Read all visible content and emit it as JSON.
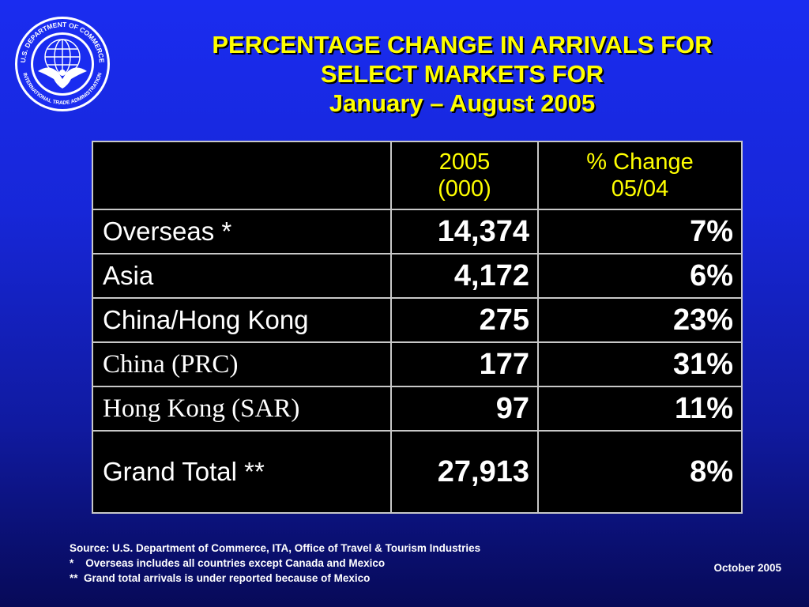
{
  "seal": {
    "ring_text_top": "U.S. DEPARTMENT OF COMMERCE",
    "ring_text_bottom": "INTERNATIONAL TRADE ADMINISTRATION",
    "icon": "eagle-globe-seal"
  },
  "title": {
    "line1": "PERCENTAGE CHANGE IN ARRIVALS FOR",
    "line2": "SELECT MARKETS FOR",
    "line3": "January – August 2005"
  },
  "table": {
    "header": {
      "blank": "",
      "col2_line1": "2005",
      "col2_line2": "(000)",
      "col3_line1": "% Change",
      "col3_line2": "05/04"
    },
    "rows": [
      {
        "label": "Overseas *",
        "arrivals": "14,374",
        "change": "7%"
      },
      {
        "label": "Asia",
        "arrivals": "4,172",
        "change": "6%"
      },
      {
        "label": "China/Hong Kong",
        "arrivals": "275",
        "change": "23%"
      },
      {
        "label": "China (PRC)",
        "arrivals": "177",
        "change": "31%"
      },
      {
        "label": "Hong Kong (SAR)",
        "arrivals": "97",
        "change": "11%"
      },
      {
        "label": "Grand Total **",
        "arrivals": "27,913",
        "change": "8%"
      }
    ]
  },
  "notes": {
    "source": "Source: U.S. Department of Commerce, ITA, Office of Travel & Tourism Industries",
    "footnote1": "*    Overseas includes all countries except Canada and Mexico",
    "footnote2": "**  Grand total arrivals is under reported because of Mexico",
    "date": "October 2005"
  },
  "colors": {
    "title": "#ffff00",
    "header_text": "#ffff00",
    "table_bg": "#000000",
    "border": "#c8c8c8",
    "background_top": "#1a2cf0",
    "background_bottom": "#070a58"
  }
}
